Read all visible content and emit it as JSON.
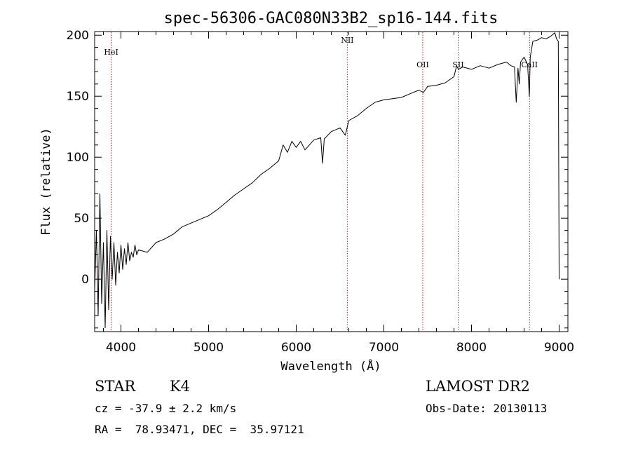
{
  "chart_data": {
    "type": "line",
    "title": "spec-56306-GAC080N33B2_sp16-144.fits",
    "xlabel": "Wavelength (Å)",
    "ylabel": "Flux (relative)",
    "xlim": [
      3700,
      9100
    ],
    "ylim": [
      -43,
      203
    ],
    "x_ticks": [
      "4000",
      "5000",
      "6000",
      "7000",
      "8000",
      "9000"
    ],
    "y_ticks": [
      "0",
      "50",
      "100",
      "150",
      "200"
    ],
    "grid": false,
    "series": [
      {
        "x": [
          3700,
          3720,
          3740,
          3760,
          3780,
          3800,
          3820,
          3840,
          3860,
          3880,
          3900,
          3920,
          3940,
          3960,
          3980,
          4000,
          4020,
          4040,
          4060,
          4080,
          4100,
          4120,
          4140,
          4160,
          4180,
          4200,
          4300,
          4400,
          4500,
          4600,
          4700,
          4800,
          4900,
          5000,
          5100,
          5200,
          5300,
          5400,
          5500,
          5600,
          5700,
          5800,
          5850,
          5900,
          5950,
          6000,
          6050,
          6100,
          6200,
          6280,
          6300,
          6320,
          6400,
          6500,
          6560,
          6600,
          6700,
          6800,
          6900,
          7000,
          7100,
          7200,
          7300,
          7400,
          7450,
          7500,
          7600,
          7700,
          7800,
          7830,
          7850,
          7900,
          8000,
          8100,
          8200,
          8300,
          8400,
          8450,
          8490,
          8510,
          8530,
          8545,
          8560,
          8600,
          8640,
          8660,
          8670,
          8700,
          8750,
          8800,
          8850,
          8900,
          8950,
          8970,
          8990,
          9000
        ],
        "y": [
          -10,
          40,
          -30,
          70,
          -20,
          30,
          -40,
          40,
          -25,
          35,
          0,
          30,
          -5,
          22,
          5,
          28,
          8,
          25,
          12,
          30,
          15,
          22,
          18,
          28,
          20,
          24,
          22,
          30,
          33,
          37,
          43,
          46,
          49,
          52,
          57,
          63,
          69,
          74,
          79,
          86,
          91,
          97,
          110,
          104,
          113,
          108,
          113,
          106,
          114,
          116,
          95,
          115,
          121,
          124,
          118,
          130,
          134,
          140,
          145,
          147,
          148,
          149,
          152,
          155,
          153,
          158,
          159,
          161,
          166,
          175,
          172,
          174,
          172,
          175,
          173,
          176,
          178,
          175,
          174,
          145,
          173,
          160,
          178,
          182,
          176,
          150,
          182,
          195,
          196,
          198,
          197,
          199,
          202,
          197,
          195,
          0
        ],
        "line_color": "#000000"
      }
    ],
    "line_markers": [
      {
        "label": "HeI",
        "x": 3889
      },
      {
        "label": "NII",
        "x": 6583
      },
      {
        "label": "OII",
        "x": 7444
      },
      {
        "label": "SII",
        "x": 7848
      },
      {
        "label": "CaII",
        "x": 8662
      }
    ],
    "marker_color": "#b22222"
  },
  "info": {
    "object_class": "STAR",
    "subclass": "K4",
    "redshift": "cz = -37.9 ± 2.2 km/s",
    "coordinates": "RA =  78.93471, DEC =  35.97121",
    "survey": "LAMOST DR2",
    "obs_date": "Obs-Date: 20130113"
  }
}
